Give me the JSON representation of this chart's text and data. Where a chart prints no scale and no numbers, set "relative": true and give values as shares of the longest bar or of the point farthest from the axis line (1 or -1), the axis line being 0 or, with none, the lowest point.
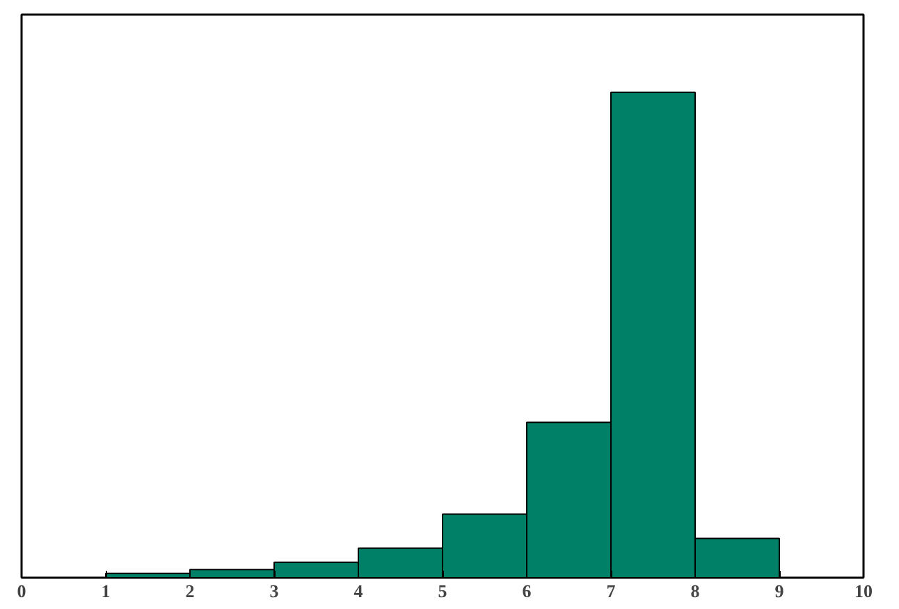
{
  "chart_data": {
    "type": "bar",
    "relative": true,
    "x": [
      1.5,
      2.5,
      3.5,
      4.5,
      5.5,
      6.5,
      7.5,
      8.5
    ],
    "values": [
      0.009,
      0.017,
      0.032,
      0.061,
      0.131,
      0.32,
      1,
      0.081
    ],
    "color": "#008066",
    "xlim": [
      0,
      10
    ],
    "xticks": [
      0,
      1,
      2,
      3,
      4,
      5,
      6,
      7,
      8,
      9,
      10
    ],
    "tick_labels": "x",
    "grid": false
  }
}
